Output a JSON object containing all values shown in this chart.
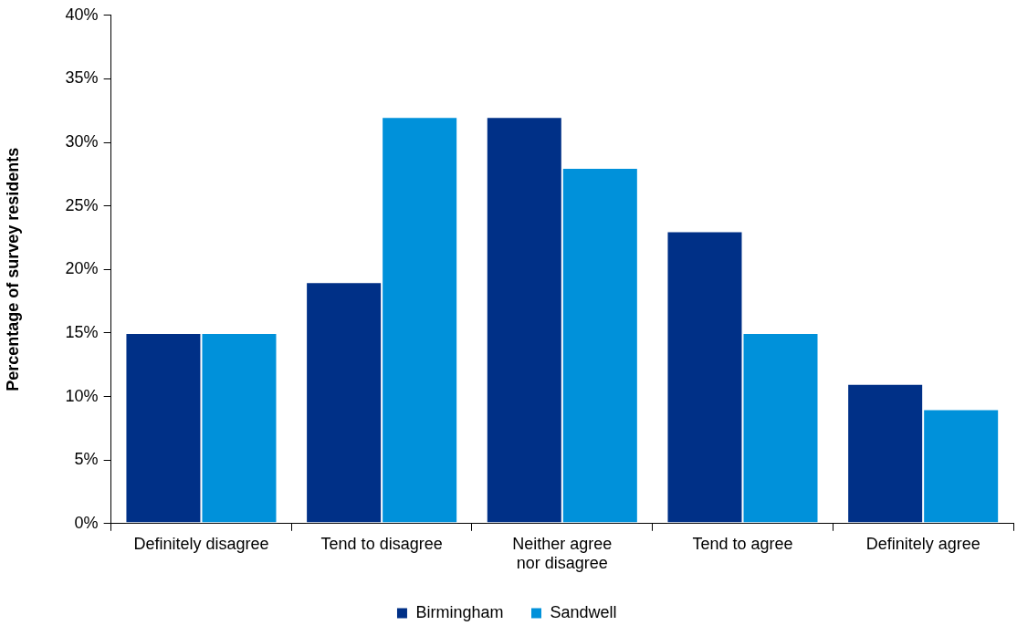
{
  "chart_data": {
    "type": "bar",
    "ylabel": "Percentage of survey residents",
    "categories": [
      "Definitely disagree",
      "Tend to disagree",
      "Neither agree nor disagree",
      "Tend to agree",
      "Definitely agree"
    ],
    "series": [
      {
        "name": "Birmingham",
        "color": "#003087",
        "values": [
          15,
          19,
          32,
          23,
          11
        ]
      },
      {
        "name": "Sandwell",
        "color": "#0091da",
        "values": [
          15,
          32,
          28,
          15,
          9
        ]
      }
    ],
    "ylim": [
      0,
      40
    ],
    "yticks": [
      {
        "value": 0,
        "label": "0%"
      },
      {
        "value": 5,
        "label": "5%"
      },
      {
        "value": 10,
        "label": "10%"
      },
      {
        "value": 15,
        "label": "15%"
      },
      {
        "value": 20,
        "label": "20%"
      },
      {
        "value": 25,
        "label": "25%"
      },
      {
        "value": 30,
        "label": "30%"
      },
      {
        "value": 35,
        "label": "35%"
      },
      {
        "value": 40,
        "label": "40%"
      }
    ],
    "grid": false,
    "legend": "bottom"
  }
}
